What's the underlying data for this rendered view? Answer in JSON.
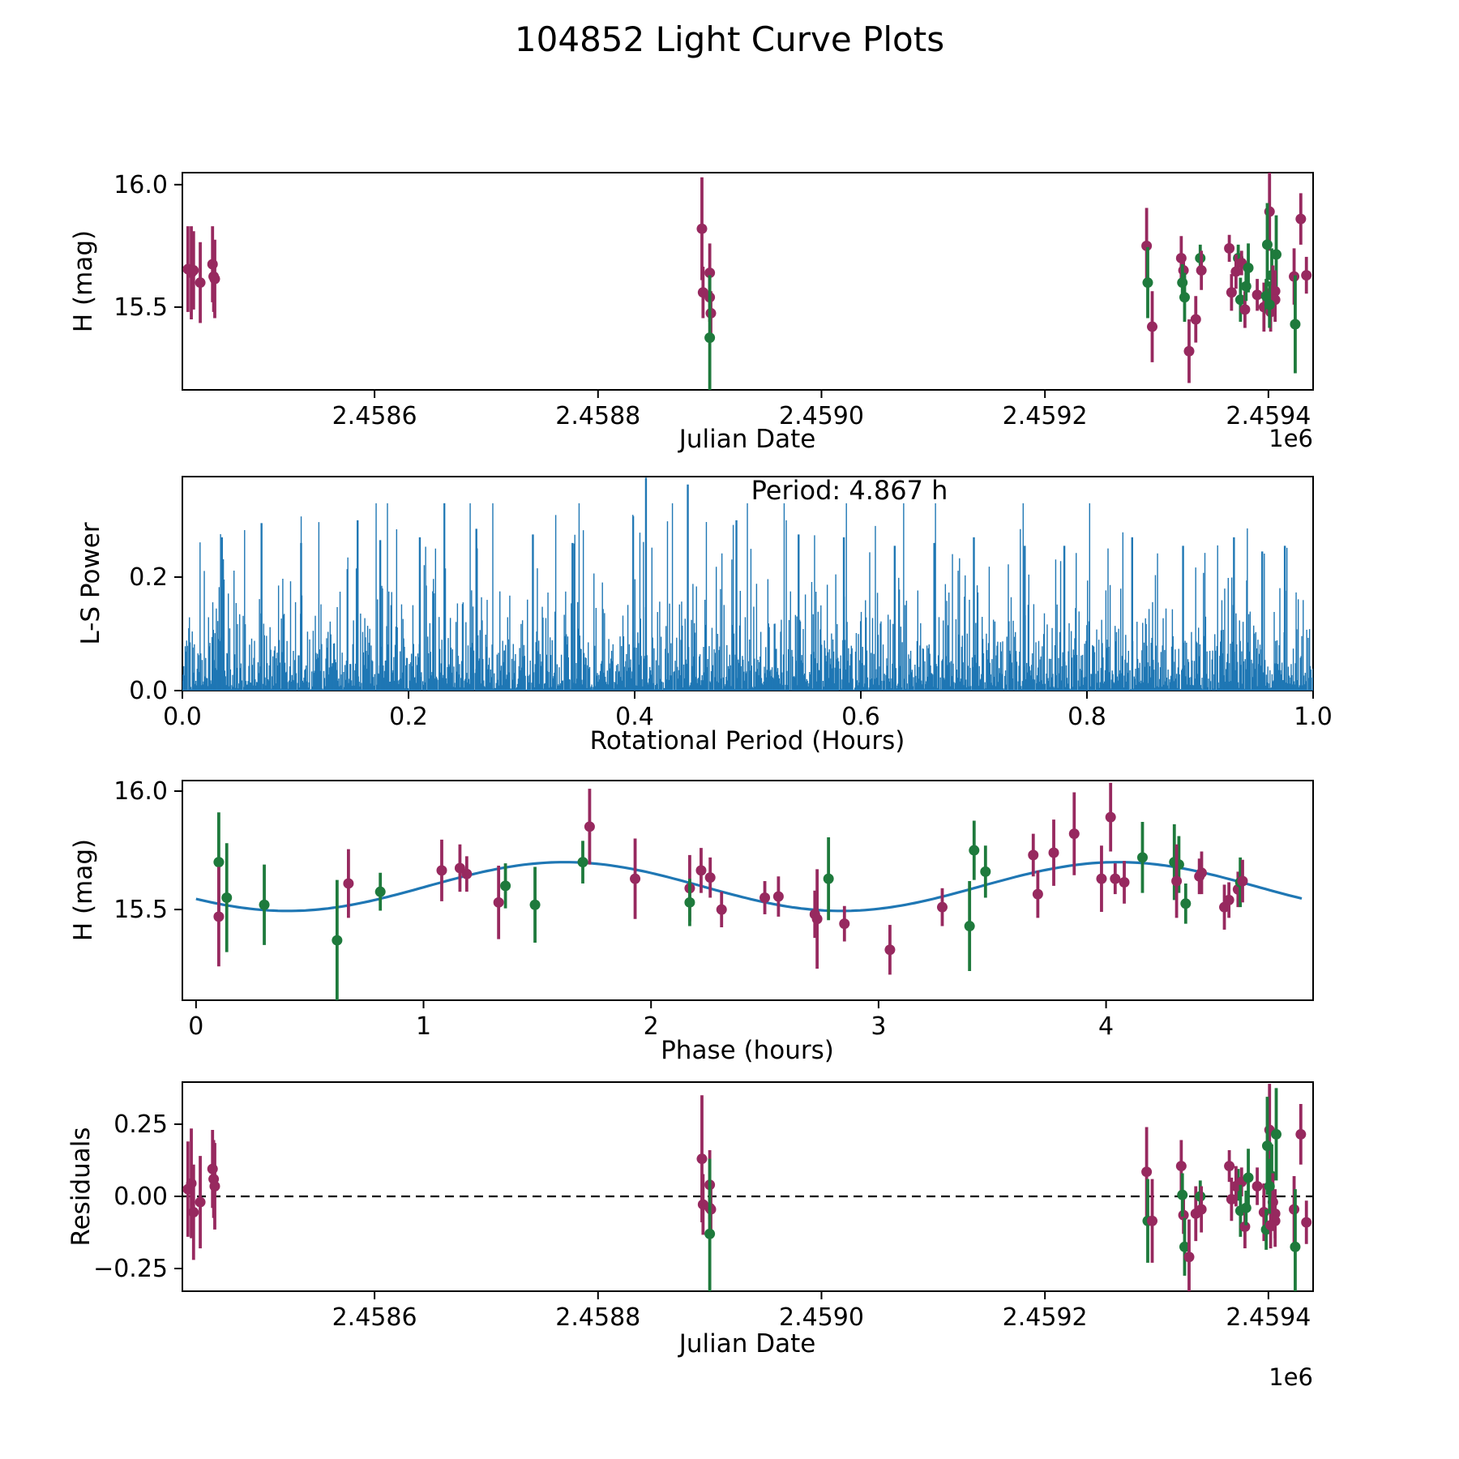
{
  "title": "104852 Light Curve Plots",
  "colors": {
    "purple": "#97295F",
    "green": "#1E7A3C",
    "blue": "#1F77B4",
    "fit_line": "#2E7EBC",
    "zero_line": "#000000"
  },
  "chart_data": [
    {
      "type": "scatter",
      "name": "lightcurve",
      "title": "",
      "xlabel": "Julian Date",
      "ylabel": "H (mag)",
      "offset_label": "1e6",
      "xlim": [
        2458428,
        2459440
      ],
      "ylim": [
        15.162,
        16.049
      ],
      "xticks": {
        "values": [
          2458600,
          2458800,
          2459000,
          2459200,
          2459400
        ],
        "labels": [
          "2.4586",
          "2.4588",
          "2.4590",
          "2.4592",
          "2.4594"
        ]
      },
      "yticks": {
        "values": [
          16.0,
          15.5
        ],
        "labels": [
          "16.0",
          "15.5"
        ]
      },
      "series_legend": [
        "purple-filter",
        "green-filter"
      ],
      "points": [
        [
          2458433,
          15.655,
          0.175,
          0
        ],
        [
          2458436,
          15.64,
          0.19,
          0
        ],
        [
          2458438,
          15.65,
          0.16,
          0
        ],
        [
          2458444,
          15.6,
          0.165,
          0
        ],
        [
          2458455,
          15.675,
          0.155,
          0
        ],
        [
          2458456,
          15.625,
          0.145,
          0
        ],
        [
          2458457,
          15.615,
          0.16,
          0
        ],
        [
          2458893,
          15.82,
          0.21,
          0
        ],
        [
          2458900,
          15.64,
          0.12,
          0
        ],
        [
          2458894,
          15.56,
          0.105,
          0
        ],
        [
          2458900,
          15.54,
          0.1,
          0
        ],
        [
          2458901,
          15.475,
          0.09,
          0
        ],
        [
          2458900,
          15.375,
          0.255,
          1
        ],
        [
          2459291,
          15.75,
          0.155,
          0
        ],
        [
          2459292,
          15.6,
          0.145,
          1
        ],
        [
          2459296,
          15.42,
          0.145,
          0
        ],
        [
          2459322,
          15.7,
          0.09,
          0
        ],
        [
          2459324,
          15.65,
          0.065,
          0
        ],
        [
          2459323,
          15.6,
          0.075,
          1
        ],
        [
          2459325,
          15.54,
          0.1,
          1
        ],
        [
          2459329,
          15.32,
          0.13,
          0
        ],
        [
          2459335,
          15.45,
          0.095,
          0
        ],
        [
          2459339,
          15.7,
          0.055,
          1
        ],
        [
          2459340,
          15.65,
          0.08,
          0
        ],
        [
          2459365,
          15.74,
          0.055,
          0
        ],
        [
          2459373,
          15.7,
          0.055,
          1
        ],
        [
          2459376,
          15.68,
          0.05,
          0
        ],
        [
          2459371,
          15.645,
          0.07,
          0
        ],
        [
          2459367,
          15.56,
          0.075,
          0
        ],
        [
          2459375,
          15.53,
          0.09,
          1
        ],
        [
          2459379,
          15.49,
          0.075,
          0
        ],
        [
          2459382,
          15.66,
          0.1,
          1
        ],
        [
          2459380,
          15.585,
          0.06,
          1
        ],
        [
          2459390,
          15.55,
          0.065,
          0
        ],
        [
          2459396,
          15.5,
          0.1,
          0
        ],
        [
          2459398,
          15.545,
          0.07,
          1
        ],
        [
          2459401,
          15.89,
          0.16,
          0
        ],
        [
          2459399,
          15.755,
          0.17,
          1
        ],
        [
          2459407,
          15.715,
          0.16,
          1
        ],
        [
          2459403,
          15.63,
          0.11,
          1
        ],
        [
          2459404,
          15.57,
          0.1,
          0
        ],
        [
          2459406,
          15.565,
          0.085,
          0
        ],
        [
          2459406,
          15.53,
          0.09,
          0
        ],
        [
          2459402,
          15.48,
          0.08,
          0
        ],
        [
          2459401,
          15.51,
          0.095,
          1
        ],
        [
          2459429,
          15.86,
          0.105,
          0
        ],
        [
          2459423,
          15.625,
          0.115,
          0
        ],
        [
          2459424,
          15.43,
          0.2,
          1
        ],
        [
          2459434,
          15.63,
          0.075,
          0
        ]
      ]
    },
    {
      "type": "line",
      "name": "periodogram",
      "xlabel": "Rotational Period (Hours)",
      "ylabel": "L-S Power",
      "annotation": "Period: 4.867 h",
      "best_period_hours": 4.867,
      "xlim": [
        0,
        1
      ],
      "ylim": [
        0,
        0.377
      ],
      "xticks": {
        "values": [
          0.0,
          0.2,
          0.4,
          0.6,
          0.8,
          1.0
        ],
        "labels": [
          "0.0",
          "0.2",
          "0.4",
          "0.6",
          "0.8",
          "1.0"
        ]
      },
      "yticks": {
        "values": [
          0.0,
          0.2
        ],
        "labels": [
          "0.0",
          "0.2"
        ]
      },
      "noise": {
        "n": 1600,
        "seed": 20,
        "mean_power": 0.066,
        "cap": 0.33
      },
      "peaks": [
        [
          0.035,
          0.27
        ],
        [
          0.07,
          0.295
        ],
        [
          0.105,
          0.26
        ],
        [
          0.155,
          0.3
        ],
        [
          0.175,
          0.265
        ],
        [
          0.21,
          0.27
        ],
        [
          0.26,
          0.285
        ],
        [
          0.31,
          0.275
        ],
        [
          0.345,
          0.26
        ],
        [
          0.41,
          0.375
        ],
        [
          0.447,
          0.363
        ],
        [
          0.49,
          0.3
        ],
        [
          0.545,
          0.275
        ],
        [
          0.585,
          0.27
        ],
        [
          0.63,
          0.255
        ],
        [
          0.665,
          0.26
        ],
        [
          0.7,
          0.27
        ],
        [
          0.745,
          0.255
        ],
        [
          0.78,
          0.255
        ],
        [
          0.84,
          0.27
        ],
        [
          0.885,
          0.255
        ],
        [
          0.93,
          0.27
        ],
        [
          0.955,
          0.245
        ],
        [
          0.975,
          0.255
        ]
      ]
    },
    {
      "type": "scatter",
      "name": "phase_folded",
      "xlabel": "Phase (hours)",
      "ylabel": "H (mag)",
      "xlim": [
        -0.06,
        4.91
      ],
      "ylim": [
        15.117,
        16.0445
      ],
      "xticks": {
        "values": [
          0,
          1,
          2,
          3,
          4
        ],
        "labels": [
          "0",
          "1",
          "2",
          "3",
          "4"
        ]
      },
      "yticks": {
        "values": [
          16.0,
          15.5
        ],
        "labels": [
          "16.0",
          "15.5"
        ]
      },
      "fit": {
        "mean": 15.597,
        "amplitude": 0.103,
        "wave_hours": 2.4335,
        "t_max": 1.62,
        "t_start": 0,
        "t_end": 4.867
      },
      "points": [
        [
          0.1,
          15.7,
          0.21,
          1
        ],
        [
          0.1,
          15.47,
          0.21,
          0
        ],
        [
          0.135,
          15.55,
          0.23,
          1
        ],
        [
          0.3,
          15.52,
          0.17,
          1
        ],
        [
          0.62,
          15.37,
          0.255,
          1
        ],
        [
          0.67,
          15.61,
          0.145,
          0
        ],
        [
          0.81,
          15.575,
          0.08,
          1
        ],
        [
          1.08,
          15.665,
          0.13,
          0
        ],
        [
          1.16,
          15.675,
          0.1,
          0
        ],
        [
          1.19,
          15.65,
          0.075,
          0
        ],
        [
          1.33,
          15.53,
          0.155,
          0
        ],
        [
          1.36,
          15.6,
          0.095,
          1
        ],
        [
          1.49,
          15.52,
          0.16,
          1
        ],
        [
          1.7,
          15.7,
          0.09,
          1
        ],
        [
          1.73,
          15.85,
          0.16,
          0
        ],
        [
          1.93,
          15.63,
          0.17,
          0
        ],
        [
          2.17,
          15.59,
          0.14,
          0
        ],
        [
          2.17,
          15.53,
          0.1,
          1
        ],
        [
          2.22,
          15.665,
          0.095,
          0
        ],
        [
          2.26,
          15.635,
          0.085,
          0
        ],
        [
          2.31,
          15.5,
          0.075,
          0
        ],
        [
          2.5,
          15.55,
          0.07,
          0
        ],
        [
          2.56,
          15.555,
          0.085,
          0
        ],
        [
          2.72,
          15.48,
          0.1,
          0
        ],
        [
          2.73,
          15.46,
          0.21,
          0
        ],
        [
          2.78,
          15.63,
          0.175,
          1
        ],
        [
          2.85,
          15.44,
          0.075,
          0
        ],
        [
          3.05,
          15.33,
          0.105,
          0
        ],
        [
          3.28,
          15.51,
          0.08,
          0
        ],
        [
          3.4,
          15.43,
          0.19,
          1
        ],
        [
          3.42,
          15.75,
          0.125,
          1
        ],
        [
          3.47,
          15.66,
          0.11,
          1
        ],
        [
          3.68,
          15.73,
          0.09,
          0
        ],
        [
          3.7,
          15.565,
          0.1,
          0
        ],
        [
          3.77,
          15.74,
          0.14,
          0
        ],
        [
          3.86,
          15.82,
          0.175,
          0
        ],
        [
          3.98,
          15.63,
          0.14,
          0
        ],
        [
          4.02,
          15.89,
          0.145,
          0
        ],
        [
          4.04,
          15.63,
          0.065,
          0
        ],
        [
          4.08,
          15.615,
          0.09,
          0
        ],
        [
          4.16,
          15.72,
          0.15,
          1
        ],
        [
          4.3,
          15.7,
          0.16,
          1
        ],
        [
          4.32,
          15.69,
          0.12,
          1
        ],
        [
          4.31,
          15.62,
          0.155,
          0
        ],
        [
          4.35,
          15.525,
          0.085,
          1
        ],
        [
          4.41,
          15.64,
          0.075,
          0
        ],
        [
          4.42,
          15.655,
          0.09,
          0
        ],
        [
          4.52,
          15.51,
          0.095,
          0
        ],
        [
          4.54,
          15.54,
          0.075,
          0
        ],
        [
          4.58,
          15.585,
          0.075,
          0
        ],
        [
          4.59,
          15.615,
          0.105,
          1
        ],
        [
          4.6,
          15.62,
          0.09,
          0
        ]
      ]
    },
    {
      "type": "scatter",
      "name": "residuals",
      "xlabel": "Julian Date",
      "ylabel": "Residuals",
      "offset_label": "1e6",
      "xlim": [
        2458428,
        2459440
      ],
      "ylim": [
        -0.3286,
        0.3958
      ],
      "xticks": {
        "values": [
          2458600,
          2458800,
          2459000,
          2459200,
          2459400
        ],
        "labels": [
          "2.4586",
          "2.4588",
          "2.4590",
          "2.4592",
          "2.4594"
        ]
      },
      "yticks": {
        "values": [
          0.25,
          0.0,
          -0.25
        ],
        "labels": [
          "0.25",
          "0.00",
          "−0.25"
        ]
      },
      "zero_line": 0.0,
      "points": [
        [
          2458433,
          0.025,
          0.165,
          0
        ],
        [
          2458436,
          0.045,
          0.19,
          0
        ],
        [
          2458438,
          -0.055,
          0.165,
          0
        ],
        [
          2458444,
          -0.02,
          0.16,
          0
        ],
        [
          2458455,
          0.095,
          0.135,
          0
        ],
        [
          2458456,
          0.06,
          0.135,
          0
        ],
        [
          2458457,
          0.035,
          0.15,
          0
        ],
        [
          2458893,
          0.13,
          0.22,
          0
        ],
        [
          2458900,
          0.04,
          0.12,
          0
        ],
        [
          2458894,
          -0.028,
          0.105,
          0
        ],
        [
          2458900,
          -0.04,
          0.1,
          0
        ],
        [
          2458901,
          -0.045,
          0.09,
          0
        ],
        [
          2458900,
          -0.13,
          0.26,
          1
        ],
        [
          2459291,
          0.085,
          0.155,
          0
        ],
        [
          2459292,
          -0.085,
          0.145,
          1
        ],
        [
          2459296,
          -0.085,
          0.145,
          0
        ],
        [
          2459322,
          0.105,
          0.09,
          0
        ],
        [
          2459324,
          -0.065,
          0.065,
          0
        ],
        [
          2459323,
          0.005,
          0.075,
          1
        ],
        [
          2459325,
          -0.175,
          0.1,
          1
        ],
        [
          2459329,
          -0.21,
          0.13,
          0
        ],
        [
          2459335,
          -0.06,
          0.095,
          0
        ],
        [
          2459339,
          0.0,
          0.055,
          1
        ],
        [
          2459340,
          -0.045,
          0.08,
          0
        ],
        [
          2459365,
          0.105,
          0.055,
          0
        ],
        [
          2459373,
          0.04,
          0.055,
          1
        ],
        [
          2459376,
          0.05,
          0.05,
          0
        ],
        [
          2459371,
          0.035,
          0.07,
          0
        ],
        [
          2459367,
          -0.01,
          0.075,
          0
        ],
        [
          2459375,
          -0.05,
          0.09,
          1
        ],
        [
          2459379,
          -0.105,
          0.075,
          0
        ],
        [
          2459382,
          0.065,
          0.1,
          1
        ],
        [
          2459380,
          -0.04,
          0.06,
          1
        ],
        [
          2459390,
          0.035,
          0.065,
          0
        ],
        [
          2459396,
          -0.055,
          0.1,
          0
        ],
        [
          2459398,
          -0.115,
          0.07,
          1
        ],
        [
          2459401,
          0.23,
          0.16,
          0
        ],
        [
          2459399,
          0.175,
          0.17,
          1
        ],
        [
          2459407,
          0.215,
          0.16,
          1
        ],
        [
          2459403,
          0.07,
          0.11,
          1
        ],
        [
          2459404,
          -0.02,
          0.1,
          0
        ],
        [
          2459406,
          -0.06,
          0.085,
          0
        ],
        [
          2459406,
          -0.085,
          0.09,
          0
        ],
        [
          2459402,
          -0.1,
          0.08,
          0
        ],
        [
          2459401,
          0.035,
          0.095,
          1
        ],
        [
          2459429,
          0.215,
          0.105,
          0
        ],
        [
          2459423,
          -0.045,
          0.115,
          0
        ],
        [
          2459424,
          -0.175,
          0.2,
          1
        ],
        [
          2459434,
          -0.09,
          0.075,
          0
        ]
      ]
    }
  ]
}
